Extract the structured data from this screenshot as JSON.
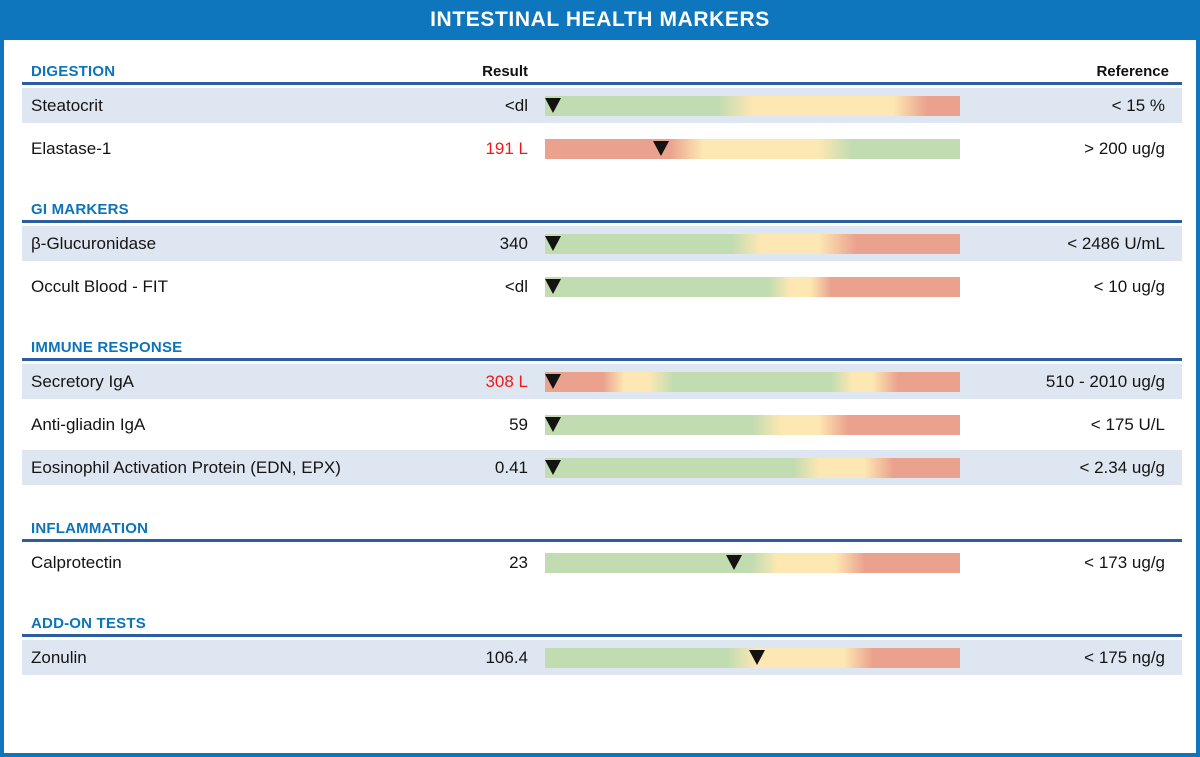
{
  "title": "INTESTINAL HEALTH MARKERS",
  "columns": {
    "result": "Result",
    "reference": "Reference"
  },
  "colors": {
    "band_blue": "#0e76bc",
    "section_blue": "#0d74ba",
    "rule_blue": "#2b5e9e",
    "row_shade": "#dee6f2",
    "bar_green": "#c2dcb1",
    "bar_yellow": "#fde7b2",
    "bar_red": "#eaa28e",
    "flag_red": "#ee1a1a",
    "marker_black": "#131313"
  },
  "sections": [
    {
      "name": "DIGESTION",
      "rows": [
        {
          "test": "Steatocrit",
          "result": "<dl",
          "flagged": false,
          "reference": "< 15 %",
          "shaded": true,
          "marker_pct": 2,
          "stops": [
            [
              0,
              "G"
            ],
            [
              42,
              "G"
            ],
            [
              50,
              "Y"
            ],
            [
              84,
              "Y"
            ],
            [
              92,
              "R"
            ],
            [
              100,
              "R"
            ]
          ]
        },
        {
          "test": "Elastase-1",
          "result": "191 L",
          "flagged": true,
          "reference": "> 200 ug/g",
          "shaded": false,
          "marker_pct": 28,
          "stops": [
            [
              0,
              "R"
            ],
            [
              30,
              "R"
            ],
            [
              38,
              "Y"
            ],
            [
              66,
              "Y"
            ],
            [
              74,
              "G"
            ],
            [
              100,
              "G"
            ]
          ]
        }
      ]
    },
    {
      "name": "GI MARKERS",
      "rows": [
        {
          "test": "β-Glucuronidase",
          "result": "340",
          "flagged": false,
          "reference": "< 2486 U/mL",
          "shaded": true,
          "marker_pct": 2,
          "stops": [
            [
              0,
              "G"
            ],
            [
              45,
              "G"
            ],
            [
              52,
              "Y"
            ],
            [
              66,
              "Y"
            ],
            [
              75,
              "R"
            ],
            [
              100,
              "R"
            ]
          ]
        },
        {
          "test": "Occult Blood - FIT",
          "result": "<dl",
          "flagged": false,
          "reference": "< 10 ug/g",
          "shaded": false,
          "marker_pct": 2,
          "stops": [
            [
              0,
              "G"
            ],
            [
              54,
              "G"
            ],
            [
              59,
              "Y"
            ],
            [
              64,
              "Y"
            ],
            [
              69,
              "R"
            ],
            [
              100,
              "R"
            ]
          ]
        }
      ]
    },
    {
      "name": "IMMUNE RESPONSE",
      "rows": [
        {
          "test": "Secretory IgA",
          "result": "308 L",
          "flagged": true,
          "reference": "510 - 2010 ug/g",
          "shaded": true,
          "marker_pct": 2,
          "stops": [
            [
              0,
              "R"
            ],
            [
              14,
              "R"
            ],
            [
              19,
              "Y"
            ],
            [
              25,
              "Y"
            ],
            [
              31,
              "G"
            ],
            [
              69,
              "G"
            ],
            [
              74,
              "Y"
            ],
            [
              79,
              "Y"
            ],
            [
              85,
              "R"
            ],
            [
              100,
              "R"
            ]
          ]
        },
        {
          "test": "Anti-gliadin IgA",
          "result": "59",
          "flagged": false,
          "reference": "< 175 U/L",
          "shaded": false,
          "marker_pct": 2,
          "stops": [
            [
              0,
              "G"
            ],
            [
              50,
              "G"
            ],
            [
              57,
              "Y"
            ],
            [
              66,
              "Y"
            ],
            [
              73,
              "R"
            ],
            [
              100,
              "R"
            ]
          ]
        },
        {
          "test": "Eosinophil Activation Protein (EDN, EPX)",
          "result": "0.41",
          "flagged": false,
          "reference": "< 2.34 ug/g",
          "shaded": true,
          "marker_pct": 2,
          "stops": [
            [
              0,
              "G"
            ],
            [
              60,
              "G"
            ],
            [
              66,
              "Y"
            ],
            [
              77,
              "Y"
            ],
            [
              84,
              "R"
            ],
            [
              100,
              "R"
            ]
          ]
        }
      ]
    },
    {
      "name": "INFLAMMATION",
      "rows": [
        {
          "test": "Calprotectin",
          "result": "23",
          "flagged": false,
          "reference": "< 173 ug/g",
          "shaded": false,
          "marker_pct": 45.5,
          "stops": [
            [
              0,
              "G"
            ],
            [
              50,
              "G"
            ],
            [
              56,
              "Y"
            ],
            [
              70,
              "Y"
            ],
            [
              77,
              "R"
            ],
            [
              100,
              "R"
            ]
          ]
        }
      ]
    },
    {
      "name": "ADD-ON TESTS",
      "rows": [
        {
          "test": "Zonulin",
          "result": "106.4",
          "flagged": false,
          "reference": "< 175 ng/g",
          "shaded": true,
          "marker_pct": 51,
          "stops": [
            [
              0,
              "G"
            ],
            [
              44,
              "G"
            ],
            [
              51,
              "Y"
            ],
            [
              72,
              "Y"
            ],
            [
              79,
              "R"
            ],
            [
              100,
              "R"
            ]
          ]
        }
      ]
    }
  ]
}
